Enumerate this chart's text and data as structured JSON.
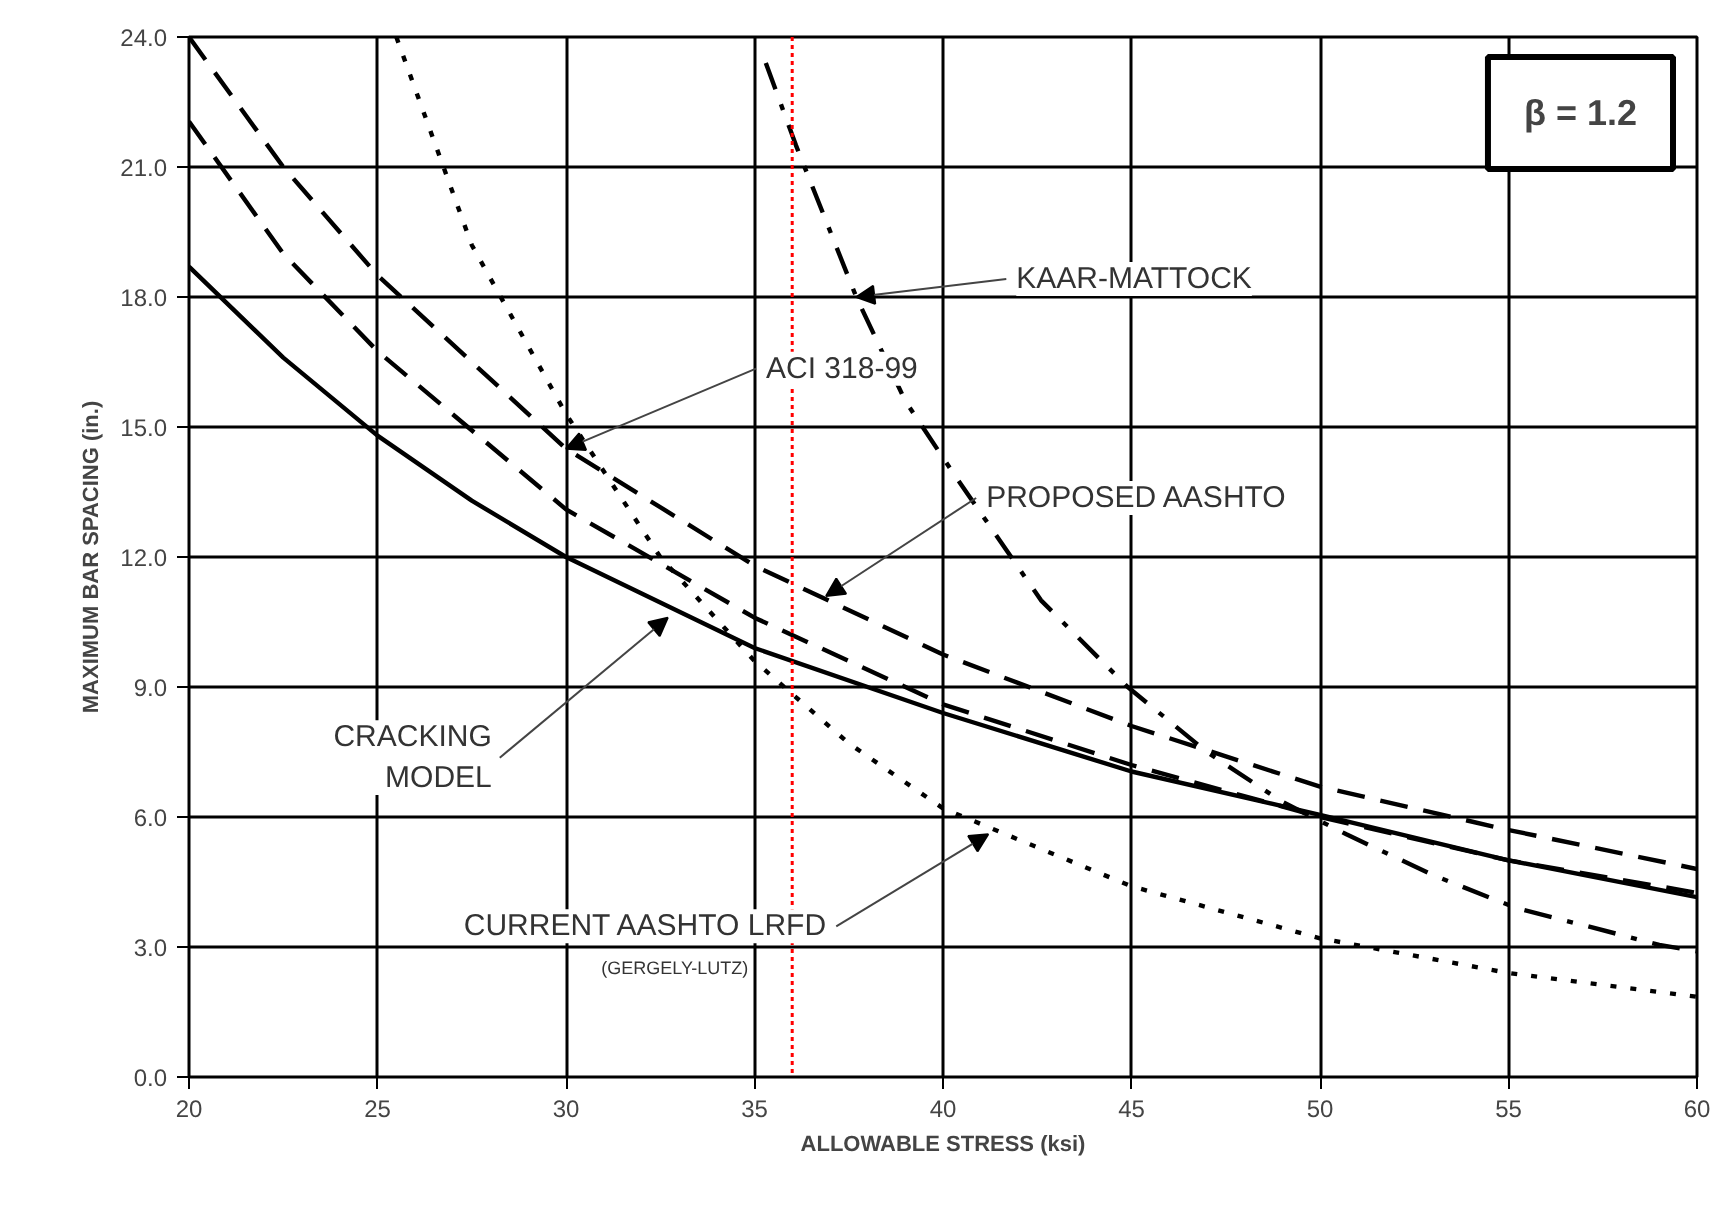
{
  "chart_data": {
    "type": "line",
    "xlabel": "ALLOWABLE STRESS (ksi)",
    "ylabel": "MAXIMUM BAR SPACING (in.)",
    "xlim": [
      20,
      60
    ],
    "xticks": [
      20,
      25,
      30,
      35,
      40,
      45,
      50,
      55,
      60
    ],
    "ylim": [
      0,
      24
    ],
    "yticks": [
      {
        "value": 0,
        "label": "0.0"
      },
      {
        "value": 3,
        "label": "3.0"
      },
      {
        "value": 6,
        "label": "6.0"
      },
      {
        "value": 9,
        "label": "9.0"
      },
      {
        "value": 12,
        "label": "12.0"
      },
      {
        "value": 15,
        "label": "15.0"
      },
      {
        "value": 18,
        "label": "18.0"
      },
      {
        "value": 21,
        "label": "21.0"
      },
      {
        "value": 24,
        "label": "24.0"
      }
    ],
    "grid": true,
    "series": [
      {
        "color": "#000000",
        "line_style": "solid",
        "x": [
          20,
          22.5,
          25,
          27.5,
          30,
          35,
          40,
          45,
          50,
          55,
          60
        ],
        "values": [
          18.7,
          16.6,
          14.8,
          13.3,
          12.0,
          9.9,
          8.4,
          7.05,
          6.05,
          5.0,
          4.15
        ]
      },
      {
        "color": "#000000",
        "line_style": "dotted",
        "x": [
          25.5,
          27.5,
          30,
          32.5,
          35,
          37.5,
          40,
          45,
          50,
          55,
          60
        ],
        "values": [
          24.0,
          19.2,
          15.3,
          12.0,
          9.6,
          7.7,
          6.2,
          4.4,
          3.2,
          2.4,
          1.85
        ]
      },
      {
        "color": "#000000",
        "line_style": "dashdot",
        "x": [
          35.3,
          36.1,
          37.7,
          39,
          40.3,
          42.6,
          44.9,
          47,
          49,
          50.7,
          53,
          55.2,
          57,
          59,
          60
        ],
        "values": [
          23.4,
          21.5,
          18.0,
          15.6,
          13.9,
          11.0,
          9.0,
          7.5,
          6.35,
          5.6,
          4.66,
          3.9,
          3.5,
          3.05,
          2.9
        ]
      },
      {
        "color": "#000000",
        "line_style": "dashed",
        "x": [
          20,
          22.5,
          25,
          30,
          35,
          40,
          45,
          50,
          55,
          60
        ],
        "values": [
          24.0,
          21.0,
          18.5,
          14.5,
          11.8,
          9.75,
          8.1,
          6.7,
          5.7,
          4.8
        ]
      },
      {
        "color": "#000000",
        "line_style": "dashed",
        "x": [
          20,
          22.5,
          25,
          30,
          35,
          40,
          45,
          50,
          55,
          60
        ],
        "values": [
          22.05,
          19.0,
          16.75,
          13.1,
          10.6,
          8.6,
          7.2,
          6.0,
          5.0,
          4.25
        ]
      }
    ],
    "ref_lines": [
      {
        "axis": "x",
        "value": 36,
        "color": "#ff0000",
        "line_style": "dotted"
      }
    ],
    "annotations": [
      {
        "text": "KAAR-MATTOCK",
        "x": 37.7,
        "y": 18.0
      },
      {
        "text": "ACI 318-99",
        "x": 30,
        "y": 14.5
      },
      {
        "text": "PROPOSED AASHTO",
        "x": 36.9,
        "y": 11.1
      },
      {
        "text": "CRACKING\nMODEL",
        "x": 32.7,
        "y": 10.6
      },
      {
        "text": "CURRENT AASHTO LRFD",
        "x": 41.2,
        "y": 5.6
      },
      "(GERGELY-LUTZ)",
      "β = 1.2"
    ]
  }
}
